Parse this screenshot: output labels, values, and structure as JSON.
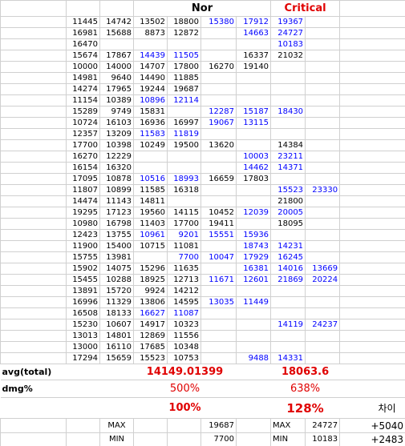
{
  "header": {
    "nor": "Nor",
    "critical": "Critical"
  },
  "table": {
    "rows": [
      [
        11445,
        14742,
        13502,
        18800,
        {
          "value": 15380,
          "color": "#0000ff"
        },
        {
          "value": 17912,
          "color": "#0000ff"
        },
        {
          "value": 19367,
          "color": "#0000ff"
        }
      ],
      [
        16981,
        15688,
        8873,
        12872,
        null,
        {
          "value": 14663,
          "color": "#0000ff"
        },
        {
          "value": 24727,
          "color": "#0000ff"
        }
      ],
      [
        16470,
        null,
        null,
        null,
        null,
        null,
        {
          "value": 10183,
          "color": "#0000ff"
        }
      ],
      [
        15674,
        17867,
        {
          "value": 14439,
          "color": "#0000ff"
        },
        {
          "value": 11505,
          "color": "#0000ff"
        },
        null,
        16337,
        21032
      ],
      [
        10000,
        14000,
        14707,
        17800,
        16270,
        19140
      ],
      [
        14981,
        9640,
        14490,
        11885
      ],
      [
        14274,
        17965,
        19244,
        19687
      ],
      [
        11154,
        10389,
        {
          "value": 10896,
          "color": "#0000ff"
        },
        {
          "value": 12114,
          "color": "#0000ff"
        }
      ],
      [
        15289,
        9749,
        15831,
        null,
        {
          "value": 12287,
          "color": "#0000ff"
        },
        {
          "value": 15187,
          "color": "#0000ff"
        },
        {
          "value": 18430,
          "color": "#0000ff"
        }
      ],
      [
        10724,
        16103,
        16936,
        16997,
        {
          "value": 19067,
          "color": "#0000ff"
        },
        {
          "value": 13115,
          "color": "#0000ff"
        }
      ],
      [
        12357,
        13209,
        {
          "value": 11583,
          "color": "#0000ff"
        },
        {
          "value": 11819,
          "color": "#0000ff"
        }
      ],
      [
        17700,
        10398,
        10249,
        19500,
        13620,
        null,
        14384
      ],
      [
        16270,
        12229,
        null,
        null,
        null,
        {
          "value": 10003,
          "color": "#0000ff"
        },
        {
          "value": 23211,
          "color": "#0000ff"
        }
      ],
      [
        16154,
        16320,
        null,
        null,
        null,
        {
          "value": 14462,
          "color": "#0000ff"
        },
        {
          "value": 14371,
          "color": "#0000ff"
        }
      ],
      [
        17095,
        10878,
        {
          "value": 10516,
          "color": "#0000ff"
        },
        {
          "value": 18993,
          "color": "#0000ff"
        },
        16659,
        17803
      ],
      [
        11807,
        10899,
        11585,
        16318,
        null,
        null,
        {
          "value": 15523,
          "color": "#0000ff"
        },
        {
          "value": 23330,
          "color": "#0000ff"
        }
      ],
      [
        14474,
        11143,
        14811,
        null,
        null,
        null,
        21800
      ],
      [
        19295,
        17123,
        19560,
        14115,
        10452,
        {
          "value": 12039,
          "color": "#0000ff"
        },
        {
          "value": 20005,
          "color": "#0000ff"
        }
      ],
      [
        10980,
        16798,
        11403,
        17700,
        19411,
        null,
        18095
      ],
      [
        12423,
        13755,
        {
          "value": 10961,
          "color": "#0000ff"
        },
        {
          "value": 9201,
          "color": "#0000ff"
        },
        {
          "value": 15551,
          "color": "#0000ff"
        },
        {
          "value": 15936,
          "color": "#0000ff"
        }
      ],
      [
        11900,
        15400,
        10715,
        11081,
        null,
        {
          "value": 18743,
          "color": "#0000ff"
        },
        {
          "value": 14231,
          "color": "#0000ff"
        }
      ],
      [
        15755,
        13981,
        null,
        {
          "value": 7700,
          "color": "#0000ff"
        },
        {
          "value": 10047,
          "color": "#0000ff"
        },
        {
          "value": 17929,
          "color": "#0000ff"
        },
        {
          "value": 16245,
          "color": "#0000ff"
        }
      ],
      [
        15902,
        14075,
        15296,
        11635,
        null,
        {
          "value": 16381,
          "color": "#0000ff"
        },
        {
          "value": 14016,
          "color": "#0000ff"
        },
        {
          "value": 13669,
          "color": "#0000ff"
        }
      ],
      [
        15455,
        10288,
        18925,
        12713,
        {
          "value": 11671,
          "color": "#0000ff"
        },
        {
          "value": 12601,
          "color": "#0000ff"
        },
        {
          "value": 21869,
          "color": "#0000ff"
        },
        {
          "value": 20224,
          "color": "#0000ff"
        }
      ],
      [
        13891,
        15720,
        9924,
        14212
      ],
      [
        16996,
        11329,
        13806,
        14595,
        {
          "value": 13035,
          "color": "#0000ff"
        },
        {
          "value": 11449,
          "color": "#0000ff"
        }
      ],
      [
        16508,
        18133,
        {
          "value": 16627,
          "color": "#0000ff"
        },
        {
          "value": 11087,
          "color": "#0000ff"
        }
      ],
      [
        15230,
        10607,
        14917,
        10323,
        null,
        null,
        {
          "value": 14119,
          "color": "#0000ff"
        },
        {
          "value": 24237,
          "color": "#0000ff"
        }
      ],
      [
        13013,
        14801,
        12869,
        11556
      ],
      [
        13000,
        16110,
        17685,
        10348
      ],
      [
        17294,
        15659,
        15523,
        10753,
        null,
        {
          "value": 9488,
          "color": "#0000ff"
        },
        {
          "value": 14331,
          "color": "#0000ff"
        }
      ]
    ]
  },
  "summary": {
    "avg": {
      "label": "avg(total)",
      "nor": 14149.01399,
      "critical": 18063.6
    },
    "dmg": {
      "label": "dmg%",
      "nor": "500%",
      "critical": "638%"
    },
    "ratio": {
      "nor": "100%",
      "critical": "128%",
      "diff_label": "차이"
    },
    "max": {
      "label": "MAX",
      "nor": 19687,
      "label2": "MAX",
      "critical": 24727,
      "diff": "+5040"
    },
    "min": {
      "label": "MIN",
      "nor": 7700,
      "label2": "MIN",
      "critical": 10183,
      "diff": "+2483"
    }
  }
}
